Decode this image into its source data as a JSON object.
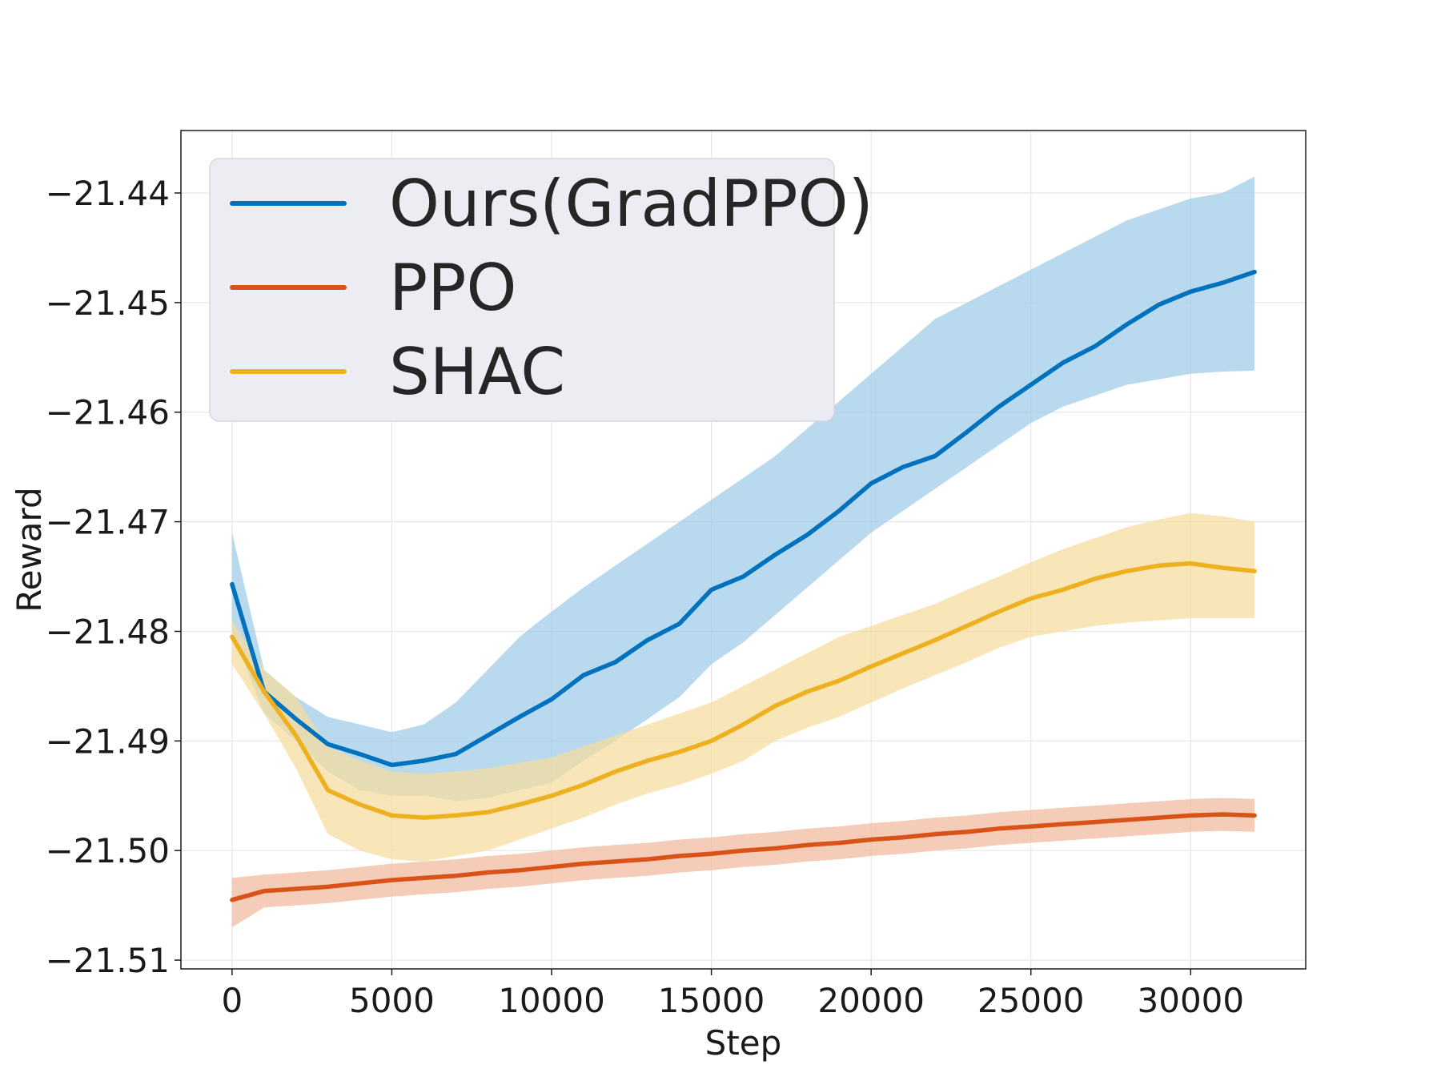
{
  "chart_data": {
    "type": "line",
    "xlabel": "Step",
    "ylabel": "Reward",
    "xlim": [
      -1600,
      33600
    ],
    "ylim": [
      -21.5108,
      -21.4343
    ],
    "x_ticks": [
      0,
      5000,
      10000,
      15000,
      20000,
      25000,
      30000
    ],
    "y_ticks": [
      -21.51,
      -21.5,
      -21.49,
      -21.48,
      -21.47,
      -21.46,
      -21.45,
      -21.44
    ],
    "x_tick_labels": [
      "0",
      "5000",
      "10000",
      "15000",
      "20000",
      "25000",
      "30000"
    ],
    "y_tick_labels": [
      "−21.51",
      "−21.50",
      "−21.49",
      "−21.48",
      "−21.47",
      "−21.46",
      "−21.45",
      "−21.44"
    ],
    "grid": true,
    "legend_position": "upper-left",
    "x": [
      0,
      1000,
      2000,
      3000,
      4000,
      5000,
      6000,
      7000,
      8000,
      9000,
      10000,
      11000,
      12000,
      13000,
      14000,
      15000,
      16000,
      17000,
      18000,
      19000,
      20000,
      21000,
      22000,
      23000,
      24000,
      25000,
      26000,
      27000,
      28000,
      29000,
      30000,
      31000,
      32000
    ],
    "series": [
      {
        "name": "Ours(GradPPO)",
        "color": "#0072BD",
        "fill_color": "#9ecae9",
        "y": [
          -21.4757,
          -21.4855,
          -21.488,
          -21.4903,
          -21.4912,
          -21.4922,
          -21.4918,
          -21.4912,
          -21.4895,
          -21.4878,
          -21.4862,
          -21.484,
          -21.4828,
          -21.4808,
          -21.4793,
          -21.4762,
          -21.475,
          -21.473,
          -21.4712,
          -21.469,
          -21.4665,
          -21.465,
          -21.464,
          -21.4618,
          -21.4595,
          -21.4575,
          -21.4555,
          -21.454,
          -21.452,
          -21.4502,
          -21.449,
          -21.4482,
          -21.4472
        ],
        "lower": [
          -21.48,
          -21.4875,
          -21.49,
          -21.4928,
          -21.4945,
          -21.495,
          -21.495,
          -21.4955,
          -21.4952,
          -21.4945,
          -21.4938,
          -21.4918,
          -21.49,
          -21.488,
          -21.486,
          -21.483,
          -21.481,
          -21.4785,
          -21.476,
          -21.4735,
          -21.471,
          -21.469,
          -21.467,
          -21.465,
          -21.463,
          -21.461,
          -21.4595,
          -21.4585,
          -21.4575,
          -21.457,
          -21.4565,
          -21.4563,
          -21.4562
        ],
        "upper": [
          -21.471,
          -21.4835,
          -21.486,
          -21.4878,
          -21.4885,
          -21.4892,
          -21.4885,
          -21.4865,
          -21.4835,
          -21.4805,
          -21.4782,
          -21.476,
          -21.474,
          -21.472,
          -21.47,
          -21.468,
          -21.466,
          -21.464,
          -21.4615,
          -21.459,
          -21.4565,
          -21.454,
          -21.4515,
          -21.45,
          -21.4485,
          -21.447,
          -21.4455,
          -21.444,
          -21.4425,
          -21.4415,
          -21.4405,
          -21.44,
          -21.4385
        ]
      },
      {
        "name": "PPO",
        "color": "#D95319",
        "fill_color": "#f0b89c",
        "y": [
          -21.5045,
          -21.5037,
          -21.5035,
          -21.5033,
          -21.503,
          -21.5027,
          -21.5025,
          -21.5023,
          -21.502,
          -21.5018,
          -21.5015,
          -21.5012,
          -21.501,
          -21.5008,
          -21.5005,
          -21.5003,
          -21.5,
          -21.4998,
          -21.4995,
          -21.4993,
          -21.499,
          -21.4988,
          -21.4985,
          -21.4983,
          -21.498,
          -21.4978,
          -21.4976,
          -21.4974,
          -21.4972,
          -21.497,
          -21.4968,
          -21.4967,
          -21.4968
        ],
        "lower": [
          -21.507,
          -21.5052,
          -21.505,
          -21.5048,
          -21.5045,
          -21.5042,
          -21.504,
          -21.5038,
          -21.5035,
          -21.5033,
          -21.503,
          -21.5027,
          -21.5025,
          -21.5023,
          -21.502,
          -21.5018,
          -21.5015,
          -21.5013,
          -21.501,
          -21.5008,
          -21.5005,
          -21.5003,
          -21.5,
          -21.4998,
          -21.4995,
          -21.4993,
          -21.4991,
          -21.4989,
          -21.4987,
          -21.4985,
          -21.4983,
          -21.4982,
          -21.4983
        ],
        "upper": [
          -21.5025,
          -21.5022,
          -21.502,
          -21.5018,
          -21.5015,
          -21.5012,
          -21.501,
          -21.5008,
          -21.5005,
          -21.5003,
          -21.5,
          -21.4997,
          -21.4995,
          -21.4993,
          -21.499,
          -21.4988,
          -21.4985,
          -21.4983,
          -21.498,
          -21.4978,
          -21.4975,
          -21.4973,
          -21.497,
          -21.4968,
          -21.4965,
          -21.4963,
          -21.4961,
          -21.4959,
          -21.4957,
          -21.4955,
          -21.4953,
          -21.4952,
          -21.4953
        ]
      },
      {
        "name": "SHAC",
        "color": "#EDB120",
        "fill_color": "#f6dc9c",
        "y": [
          -21.4805,
          -21.4855,
          -21.4895,
          -21.4945,
          -21.4958,
          -21.4968,
          -21.497,
          -21.4968,
          -21.4965,
          -21.4958,
          -21.495,
          -21.494,
          -21.4928,
          -21.4918,
          -21.491,
          -21.49,
          -21.4885,
          -21.4868,
          -21.4855,
          -21.4845,
          -21.4832,
          -21.482,
          -21.4808,
          -21.4795,
          -21.4782,
          -21.477,
          -21.4762,
          -21.4752,
          -21.4745,
          -21.474,
          -21.4738,
          -21.4742,
          -21.4745
        ],
        "lower": [
          -21.483,
          -21.4875,
          -21.4925,
          -21.4985,
          -21.5,
          -21.5008,
          -21.501,
          -21.5005,
          -21.5,
          -21.499,
          -21.498,
          -21.497,
          -21.4958,
          -21.4948,
          -21.494,
          -21.493,
          -21.4918,
          -21.49,
          -21.4888,
          -21.4878,
          -21.4865,
          -21.4852,
          -21.484,
          -21.4828,
          -21.4815,
          -21.4805,
          -21.48,
          -21.4795,
          -21.4792,
          -21.479,
          -21.4788,
          -21.4788,
          -21.4788
        ],
        "upper": [
          -21.479,
          -21.4835,
          -21.486,
          -21.4905,
          -21.4918,
          -21.4928,
          -21.493,
          -21.4928,
          -21.4925,
          -21.492,
          -21.4915,
          -21.4905,
          -21.4895,
          -21.4885,
          -21.4875,
          -21.4865,
          -21.485,
          -21.4835,
          -21.482,
          -21.4805,
          -21.4795,
          -21.4785,
          -21.4775,
          -21.4762,
          -21.475,
          -21.4737,
          -21.4725,
          -21.4715,
          -21.4705,
          -21.4698,
          -21.4692,
          -21.4695,
          -21.47
        ]
      }
    ]
  }
}
